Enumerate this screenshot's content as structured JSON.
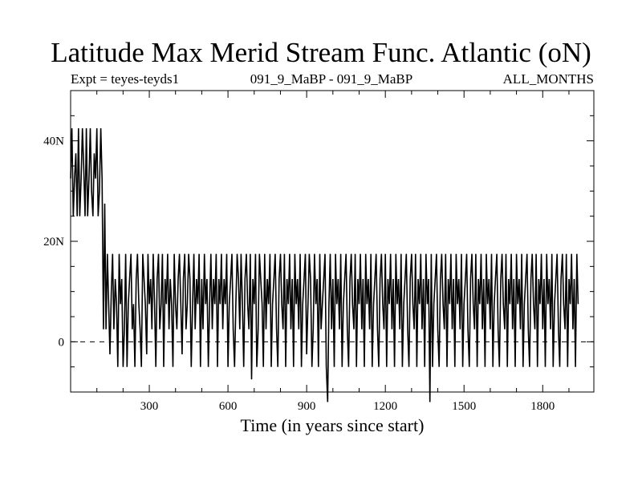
{
  "chart_data": {
    "type": "line",
    "title": "Latitude Max Merid Stream Func. Atlantic (oN)",
    "subtitle_left": "Expt = teyes-teyds1",
    "subtitle_center": "091_9_MaBP - 091_9_MaBP",
    "subtitle_right": "ALL_MONTHS",
    "xlabel": "Time (in years since start)",
    "ylabel": "",
    "xlim": [
      0,
      1995
    ],
    "ylim": [
      -10,
      50
    ],
    "xticks": [
      300,
      600,
      900,
      1200,
      1500,
      1800
    ],
    "xtick_labels": [
      "300",
      "600",
      "900",
      "1200",
      "1500",
      "1800"
    ],
    "yticks": [
      0,
      20,
      40
    ],
    "ytick_labels": [
      "0",
      "20N",
      "40N"
    ],
    "reference_line": {
      "y": 0,
      "style": "dashed"
    },
    "grid": false,
    "series": [
      {
        "color": "#000000",
        "x_start": 0,
        "x_step": 5,
        "values": [
          32.5,
          42.5,
          25,
          32.5,
          37.5,
          25,
          42.5,
          25,
          32.5,
          42.5,
          35,
          25,
          42.5,
          25,
          32.5,
          42.5,
          30,
          25,
          37.5,
          32.5,
          42.5,
          25,
          30,
          42.5,
          32.5,
          2.5,
          27.5,
          2.5,
          17.5,
          7.5,
          -2.5,
          10,
          17.5,
          2.5,
          12.5,
          7.5,
          -5,
          17.5,
          7.5,
          12.5,
          -5,
          2.5,
          17.5,
          -5,
          7.5,
          12.5,
          17.5,
          2.5,
          7.5,
          -5,
          12.5,
          17.5,
          7.5,
          2.5,
          -5,
          17.5,
          12.5,
          7.5,
          -2.5,
          17.5,
          7.5,
          12.5,
          2.5,
          17.5,
          7.5,
          -5,
          12.5,
          17.5,
          2.5,
          7.5,
          17.5,
          -5,
          12.5,
          7.5,
          17.5,
          2.5,
          12.5,
          7.5,
          -5,
          17.5,
          7.5,
          2.5,
          12.5,
          17.5,
          7.5,
          -2.5,
          12.5,
          17.5,
          2.5,
          7.5,
          17.5,
          12.5,
          -5,
          7.5,
          17.5,
          2.5,
          12.5,
          7.5,
          17.5,
          -5,
          12.5,
          2.5,
          17.5,
          7.5,
          12.5,
          -5,
          7.5,
          17.5,
          2.5,
          12.5,
          7.5,
          17.5,
          -5,
          12.5,
          7.5,
          17.5,
          2.5,
          12.5,
          7.5,
          17.5,
          -5,
          7.5,
          12.5,
          17.5,
          2.5,
          -5,
          7.5,
          17.5,
          12.5,
          2.5,
          17.5,
          7.5,
          -5,
          12.5,
          17.5,
          7.5,
          2.5,
          17.5,
          -7.5,
          12.5,
          7.5,
          17.5,
          -5,
          2.5,
          17.5,
          12.5,
          7.5,
          -5,
          17.5,
          2.5,
          12.5,
          7.5,
          17.5,
          -5,
          7.5,
          12.5,
          17.5,
          2.5,
          -5,
          12.5,
          17.5,
          7.5,
          2.5,
          17.5,
          -5,
          12.5,
          7.5,
          17.5,
          2.5,
          12.5,
          -5,
          17.5,
          7.5,
          12.5,
          2.5,
          17.5,
          -5,
          7.5,
          12.5,
          17.5,
          -2.5,
          7.5,
          17.5,
          12.5,
          -5,
          2.5,
          17.5,
          7.5,
          12.5,
          -5,
          17.5,
          2.5,
          7.5,
          12.5,
          17.5,
          -5,
          -12,
          7.5,
          17.5,
          2.5,
          12.5,
          -5,
          17.5,
          7.5,
          12.5,
          2.5,
          17.5,
          -5,
          7.5,
          12.5,
          17.5,
          2.5,
          -5,
          12.5,
          17.5,
          7.5,
          2.5,
          17.5,
          -5,
          12.5,
          7.5,
          17.5,
          2.5,
          12.5,
          -5,
          17.5,
          7.5,
          12.5,
          2.5,
          17.5,
          -5,
          7.5,
          12.5,
          17.5,
          2.5,
          -5,
          12.5,
          17.5,
          7.5,
          2.5,
          17.5,
          -5,
          12.5,
          7.5,
          17.5,
          2.5,
          12.5,
          -5,
          17.5,
          7.5,
          12.5,
          2.5,
          17.5,
          -5,
          7.5,
          12.5,
          17.5,
          2.5,
          -5,
          12.5,
          17.5,
          7.5,
          2.5,
          17.5,
          -5,
          12.5,
          7.5,
          17.5,
          2.5,
          12.5,
          -5,
          17.5,
          7.5,
          12.5,
          -12,
          17.5,
          -5,
          7.5,
          12.5,
          17.5,
          2.5,
          -5,
          12.5,
          17.5,
          7.5,
          2.5,
          17.5,
          -5,
          12.5,
          7.5,
          17.5,
          2.5,
          12.5,
          -5,
          17.5,
          7.5,
          12.5,
          2.5,
          17.5,
          -5,
          7.5,
          12.5,
          17.5,
          2.5,
          -5,
          12.5,
          17.5,
          7.5,
          2.5,
          17.5,
          -5,
          12.5,
          7.5,
          17.5,
          2.5,
          12.5,
          -5,
          17.5,
          7.5,
          12.5,
          2.5,
          17.5,
          -5,
          7.5,
          12.5,
          17.5,
          2.5,
          -5,
          12.5,
          17.5,
          7.5,
          2.5,
          17.5,
          -5,
          12.5,
          7.5,
          17.5,
          2.5,
          12.5,
          -5,
          17.5,
          7.5,
          12.5,
          2.5,
          17.5,
          -5,
          7.5,
          12.5,
          17.5,
          2.5,
          -5,
          12.5,
          17.5,
          7.5,
          2.5,
          17.5,
          -5,
          12.5,
          7.5,
          17.5,
          2.5,
          12.5,
          -5,
          17.5,
          7.5,
          12.5,
          2.5,
          17.5,
          -5,
          7.5,
          12.5,
          17.5,
          2.5,
          -5,
          12.5,
          17.5,
          7.5,
          2.5,
          17.5,
          -5,
          12.5,
          7.5,
          17.5,
          2.5,
          12.5,
          -5,
          17.5,
          7.5
        ]
      }
    ]
  }
}
